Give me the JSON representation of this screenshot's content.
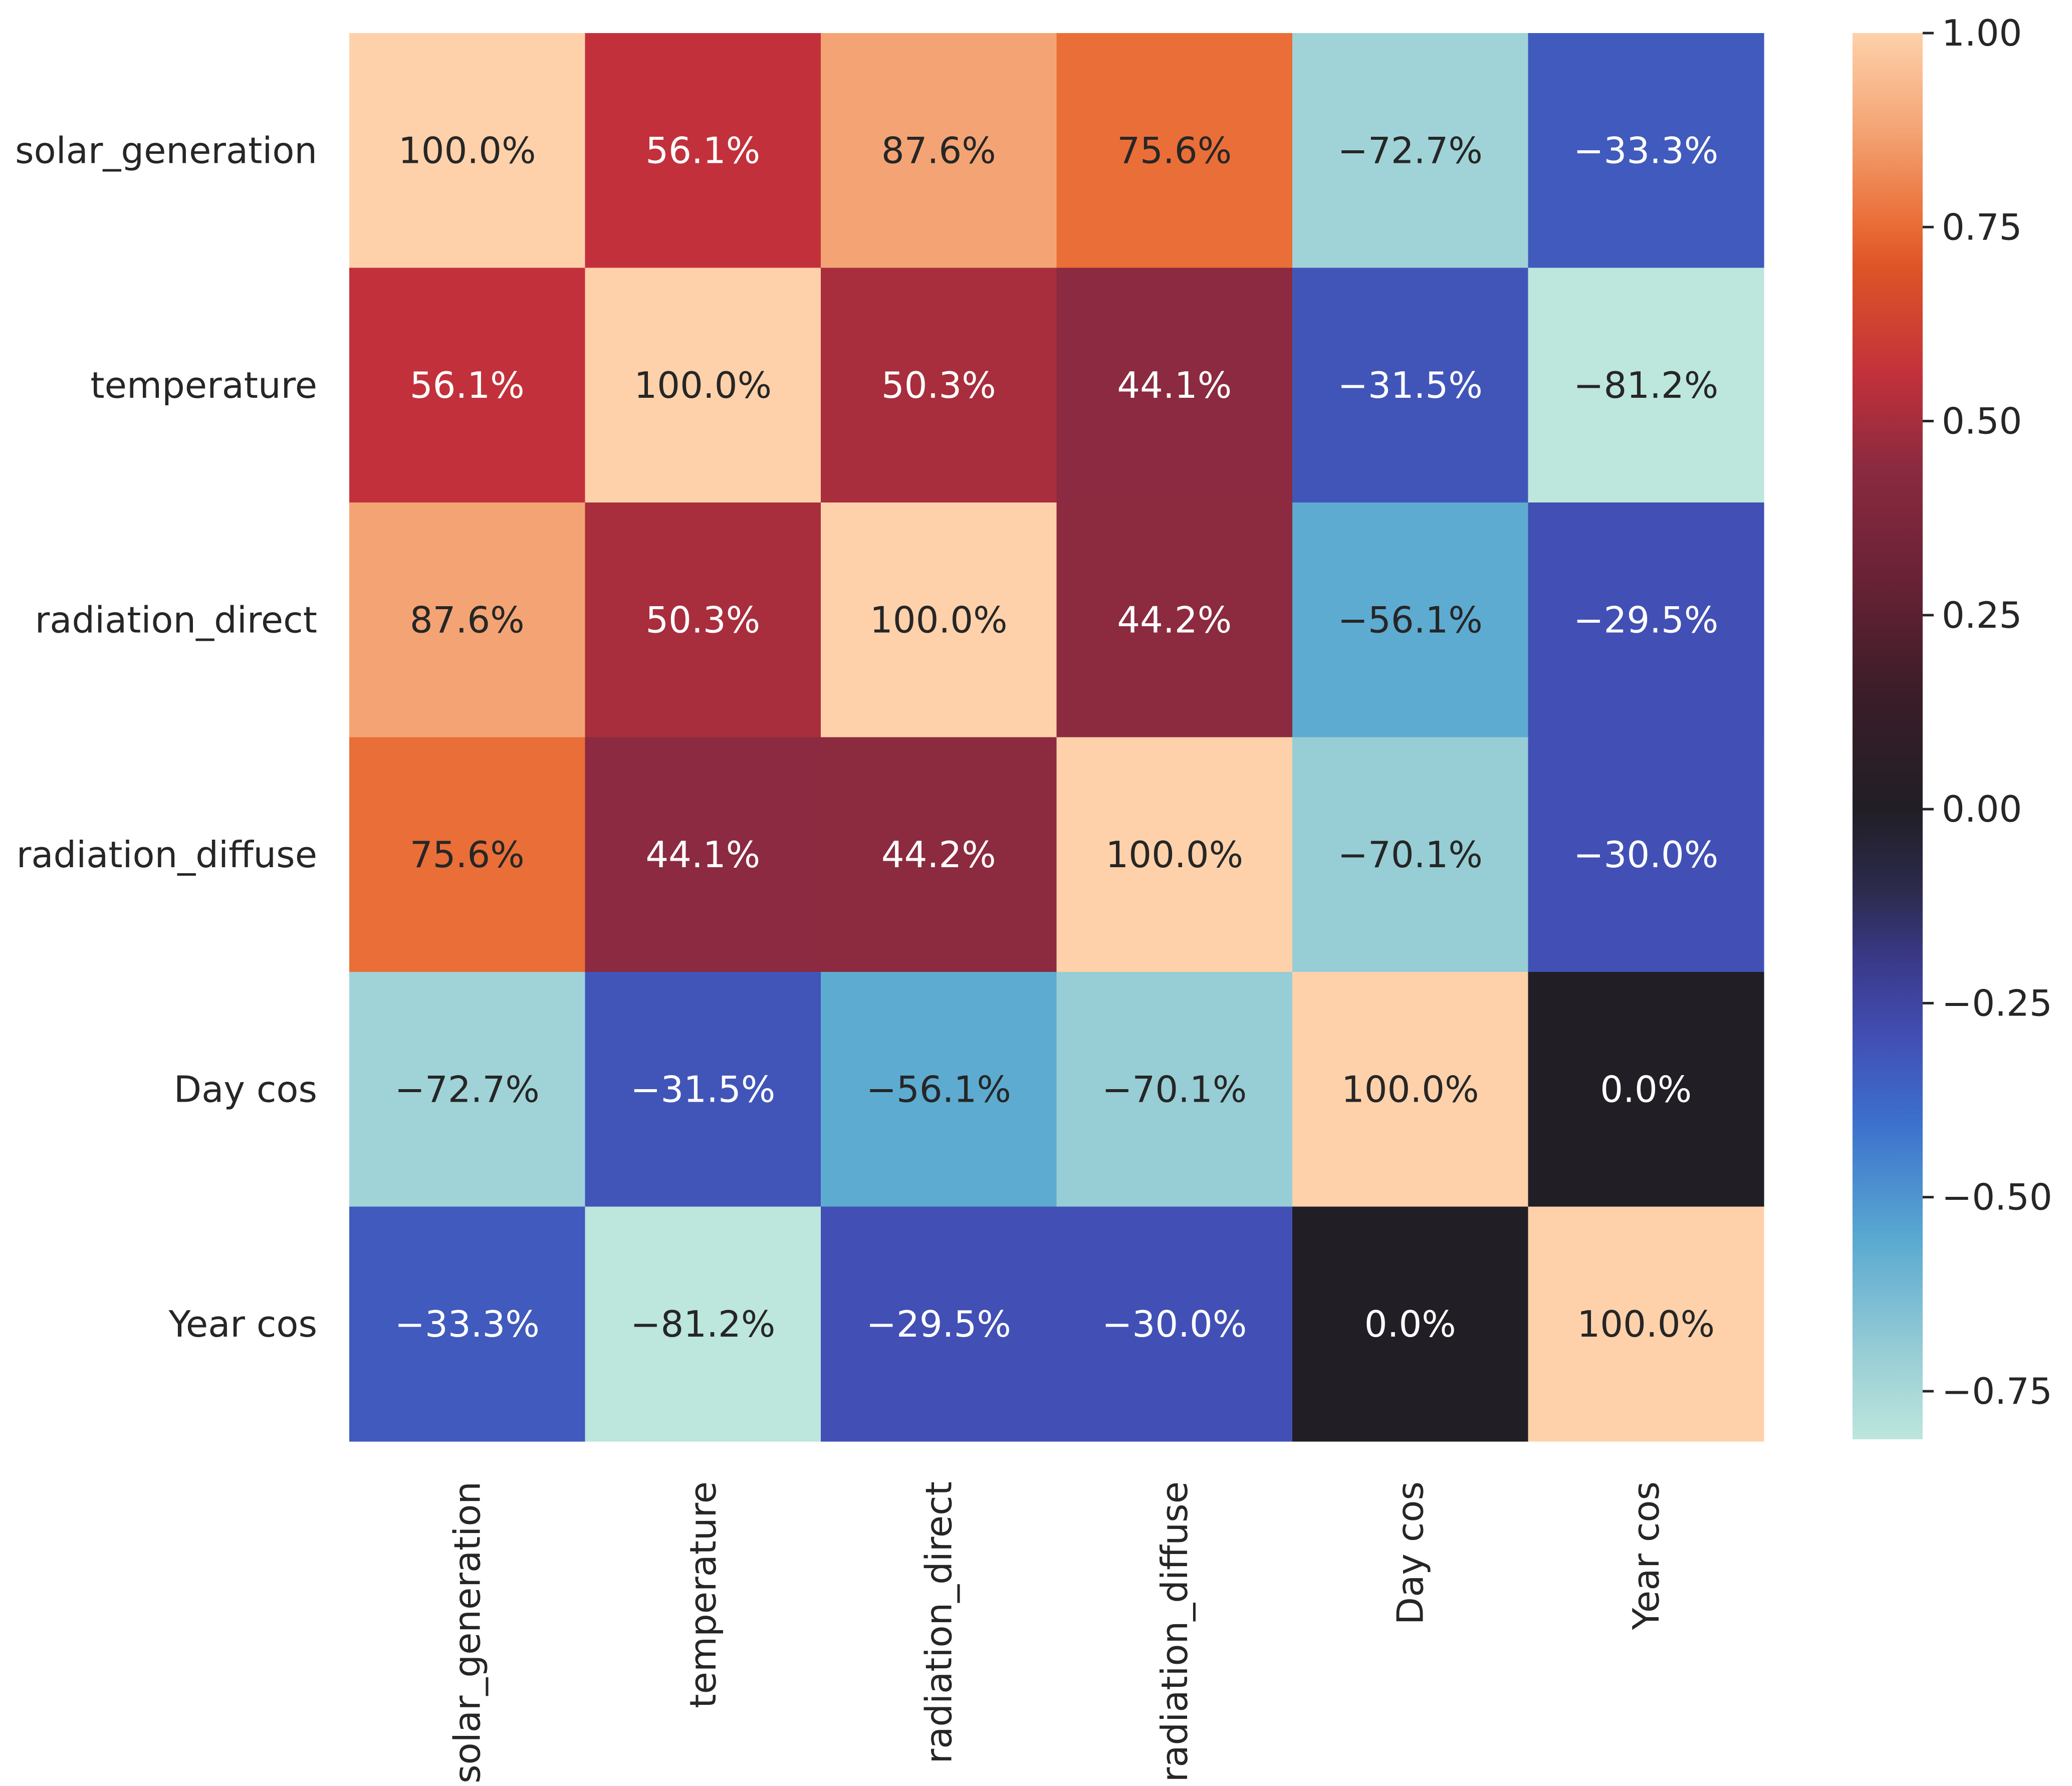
{
  "chart_data": {
    "type": "heatmap",
    "title": "",
    "row_labels": [
      "solar_generation",
      "temperature",
      "radiation_direct",
      "radiation_diffuse",
      "Day cos",
      "Year cos"
    ],
    "col_labels": [
      "solar_generation",
      "temperature",
      "radiation_direct",
      "radiation_diffuse",
      "Day cos",
      "Year cos"
    ],
    "values": [
      [
        1.0,
        0.561,
        0.876,
        0.756,
        -0.727,
        -0.333
      ],
      [
        0.561,
        1.0,
        0.503,
        0.441,
        -0.315,
        -0.812
      ],
      [
        0.876,
        0.503,
        1.0,
        0.442,
        -0.561,
        -0.295
      ],
      [
        0.756,
        0.441,
        0.442,
        1.0,
        -0.701,
        -0.3
      ],
      [
        -0.727,
        -0.315,
        -0.561,
        -0.701,
        1.0,
        0.0
      ],
      [
        -0.333,
        -0.812,
        -0.295,
        -0.3,
        0.0,
        1.0
      ]
    ],
    "annotations": [
      [
        "100.0%",
        "56.1%",
        "87.6%",
        "75.6%",
        "−72.7%",
        "−33.3%"
      ],
      [
        "56.1%",
        "100.0%",
        "50.3%",
        "44.1%",
        "−31.5%",
        "−81.2%"
      ],
      [
        "87.6%",
        "50.3%",
        "100.0%",
        "44.2%",
        "−56.1%",
        "−29.5%"
      ],
      [
        "75.6%",
        "44.1%",
        "44.2%",
        "100.0%",
        "−70.1%",
        "−30.0%"
      ],
      [
        "−72.7%",
        "−31.5%",
        "−56.1%",
        "−70.1%",
        "100.0%",
        "0.0%"
      ],
      [
        "−33.3%",
        "−81.2%",
        "−29.5%",
        "−30.0%",
        "0.0%",
        "100.0%"
      ]
    ],
    "colorbar": {
      "vmin": -0.812,
      "vmax": 1.0,
      "ticks": [
        1.0,
        0.75,
        0.5,
        0.25,
        0.0,
        -0.25,
        -0.5,
        -0.75
      ],
      "tick_labels": [
        "1.00",
        "0.75",
        "0.50",
        "0.25",
        "0.00",
        "−0.25",
        "−0.50",
        "−0.75"
      ],
      "colormap": "icefire",
      "stops": [
        {
          "v": -0.812,
          "color": "#bde6dd"
        },
        {
          "v": -0.7,
          "color": "#97cdd5"
        },
        {
          "v": -0.55,
          "color": "#58a8d1"
        },
        {
          "v": -0.4,
          "color": "#3c6fcc"
        },
        {
          "v": -0.3,
          "color": "#4250b6"
        },
        {
          "v": -0.2,
          "color": "#3b3a8c"
        },
        {
          "v": -0.1,
          "color": "#2b2a4a"
        },
        {
          "v": 0.0,
          "color": "#211e26"
        },
        {
          "v": 0.15,
          "color": "#3b1d28"
        },
        {
          "v": 0.3,
          "color": "#6a2236"
        },
        {
          "v": 0.44,
          "color": "#8b2a40"
        },
        {
          "v": 0.56,
          "color": "#c2313b"
        },
        {
          "v": 0.7,
          "color": "#de5527"
        },
        {
          "v": 0.756,
          "color": "#ea6e38"
        },
        {
          "v": 0.876,
          "color": "#f4a474"
        },
        {
          "v": 1.0,
          "color": "#fed1aa"
        }
      ]
    }
  }
}
